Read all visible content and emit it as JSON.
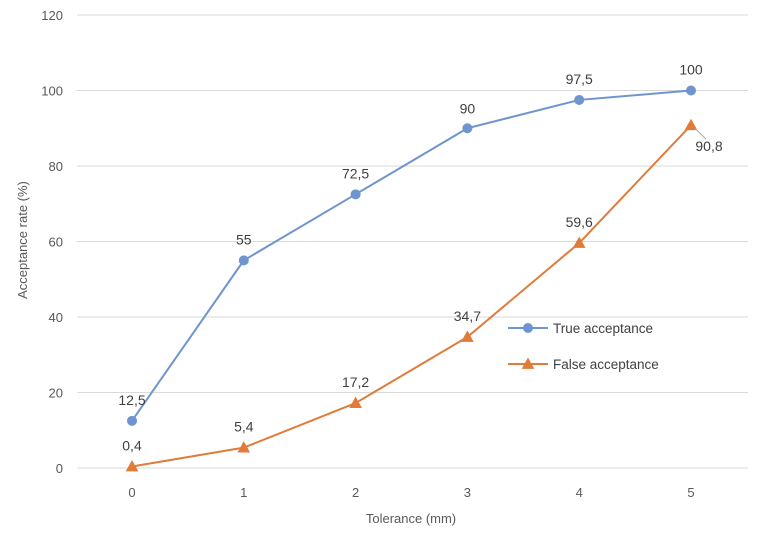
{
  "chart_data": {
    "type": "line",
    "x": [
      0,
      1,
      2,
      3,
      4,
      5
    ],
    "xlabel": "Tolerance (mm)",
    "ylabel": "Acceptance rate (%)",
    "ylim": [
      0,
      120
    ],
    "yticks": [
      0,
      20,
      40,
      60,
      80,
      100,
      120
    ],
    "grid": "horizontal",
    "legend_position": "center-right",
    "series": [
      {
        "name": "True acceptance",
        "values": [
          12.5,
          55,
          72.5,
          90,
          97.5,
          100
        ],
        "labels": [
          "12,5",
          "55",
          "72,5",
          "90",
          "97,5",
          "100"
        ],
        "color": "#6f94cf",
        "marker": "circle"
      },
      {
        "name": "False acceptance",
        "values": [
          0.4,
          5.4,
          17.2,
          34.7,
          59.6,
          90.8
        ],
        "labels": [
          "0,4",
          "5,4",
          "17,2",
          "34,7",
          "59,6",
          "90,8"
        ],
        "color": "#e07b39",
        "marker": "triangle"
      }
    ]
  }
}
